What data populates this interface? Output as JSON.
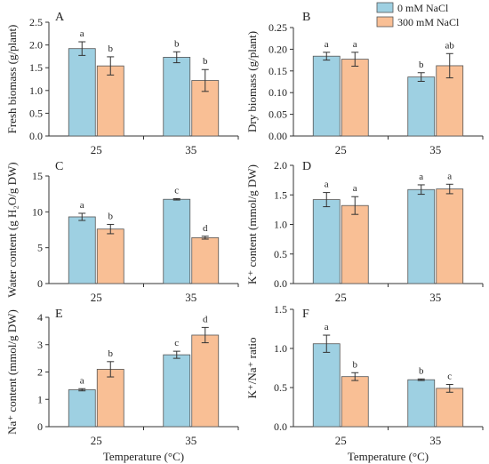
{
  "legend": {
    "items": [
      {
        "label": "0 mM NaCl",
        "color": "#9ed0e2"
      },
      {
        "label": "300 mM NaCl",
        "color": "#f9bf95"
      }
    ],
    "placement": "top-right"
  },
  "colors": {
    "series_0": "#9ed0e2",
    "series_1": "#f9bf95",
    "axis": "#333333"
  },
  "chart_data": [
    {
      "panel": "A",
      "type": "bar",
      "categories": [
        "25",
        "35"
      ],
      "xlabel": "",
      "ylabel": "Fresh biomass (g/plant)",
      "ylim": [
        0,
        2.5
      ],
      "yticks": [
        "0.0",
        "0.5",
        "1.0",
        "1.5",
        "2.0",
        "2.5"
      ],
      "series": [
        {
          "name": "0 mM NaCl",
          "values": [
            1.92,
            1.73
          ],
          "errors": [
            0.15,
            0.12
          ],
          "letters": [
            "a",
            "b"
          ]
        },
        {
          "name": "300 mM NaCl",
          "values": [
            1.54,
            1.22
          ],
          "errors": [
            0.2,
            0.24
          ],
          "letters": [
            "b",
            "b"
          ]
        }
      ]
    },
    {
      "panel": "B",
      "type": "bar",
      "categories": [
        "25",
        "35"
      ],
      "xlabel": "",
      "ylabel": "Dry biomass (g/plant)",
      "ylim": [
        0,
        0.25
      ],
      "yticks": [
        "0.00",
        "0.05",
        "0.10",
        "0.15",
        "0.20",
        "0.25"
      ],
      "series": [
        {
          "name": "0 mM NaCl",
          "values": [
            0.184,
            0.136
          ],
          "errors": [
            0.009,
            0.01
          ],
          "letters": [
            "a",
            "b"
          ]
        },
        {
          "name": "300 mM NaCl",
          "values": [
            0.177,
            0.162
          ],
          "errors": [
            0.016,
            0.028
          ],
          "letters": [
            "a",
            "ab"
          ]
        }
      ]
    },
    {
      "panel": "C",
      "type": "bar",
      "categories": [
        "25",
        "35"
      ],
      "xlabel": "",
      "ylabel": "Water content (g H₂O/g DW)",
      "ylim": [
        0,
        15
      ],
      "yticks": [
        "0",
        "5",
        "10",
        "15"
      ],
      "series": [
        {
          "name": "0 mM NaCl",
          "values": [
            9.3,
            11.75
          ],
          "errors": [
            0.5,
            0.1
          ],
          "letters": [
            "a",
            "c"
          ]
        },
        {
          "name": "300 mM NaCl",
          "values": [
            7.6,
            6.4
          ],
          "errors": [
            0.65,
            0.2
          ],
          "letters": [
            "b",
            "d"
          ]
        }
      ]
    },
    {
      "panel": "D",
      "type": "bar",
      "categories": [
        "25",
        "35"
      ],
      "xlabel": "",
      "ylabel": "K⁺ content (mmol/g DW)",
      "ylim": [
        0,
        2.0
      ],
      "yticks": [
        "0.0",
        "0.5",
        "1.0",
        "1.5",
        "2.0"
      ],
      "series": [
        {
          "name": "0 mM NaCl",
          "values": [
            1.42,
            1.59
          ],
          "errors": [
            0.12,
            0.08
          ],
          "letters": [
            "a",
            "a"
          ]
        },
        {
          "name": "300 mM NaCl",
          "values": [
            1.32,
            1.6
          ],
          "errors": [
            0.15,
            0.08
          ],
          "letters": [
            "a",
            "a"
          ]
        }
      ]
    },
    {
      "panel": "E",
      "type": "bar",
      "categories": [
        "25",
        "35"
      ],
      "xlabel": "Temperature (°C)",
      "ylabel": "Na⁺ content (mmol/g DW)",
      "ylim": [
        0,
        4
      ],
      "yticks": [
        "0",
        "1",
        "2",
        "3",
        "4"
      ],
      "series": [
        {
          "name": "0 mM NaCl",
          "values": [
            1.35,
            2.63
          ],
          "errors": [
            0.04,
            0.13
          ],
          "letters": [
            "a",
            "c"
          ]
        },
        {
          "name": "300 mM NaCl",
          "values": [
            2.1,
            3.35
          ],
          "errors": [
            0.28,
            0.28
          ],
          "letters": [
            "b",
            "d"
          ]
        }
      ]
    },
    {
      "panel": "F",
      "type": "bar",
      "categories": [
        "25",
        "35"
      ],
      "xlabel": "Temperature (°C)",
      "ylabel": "K⁺/Na⁺ ratio",
      "ylim": [
        0,
        1.5
      ],
      "yticks": [
        "0.0",
        "0.5",
        "1.0",
        "1.5"
      ],
      "series": [
        {
          "name": "0 mM NaCl",
          "values": [
            1.06,
            0.6
          ],
          "errors": [
            0.11,
            0.01
          ],
          "letters": [
            "a",
            "b"
          ]
        },
        {
          "name": "300 mM NaCl",
          "values": [
            0.64,
            0.49
          ],
          "errors": [
            0.05,
            0.05
          ],
          "letters": [
            "b",
            "c"
          ]
        }
      ]
    }
  ]
}
